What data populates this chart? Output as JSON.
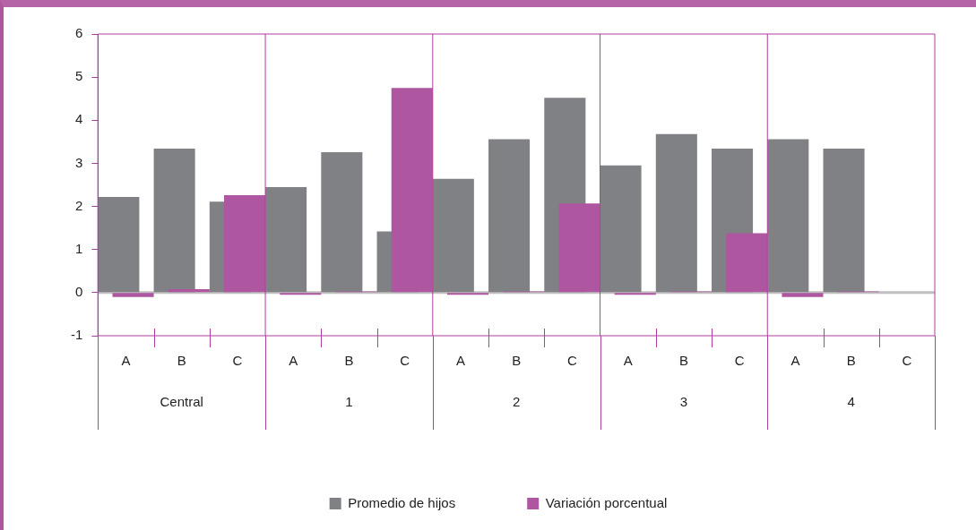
{
  "chart_data": {
    "type": "bar",
    "categories": [
      "A",
      "B",
      "C",
      "A",
      "B",
      "C",
      "A",
      "B",
      "C",
      "A",
      "B",
      "C",
      "A",
      "B",
      "C"
    ],
    "series": [
      {
        "name": "Promedio de hijos",
        "color": "#808184",
        "values": [
          2.22,
          3.34,
          2.11,
          2.45,
          3.26,
          1.42,
          2.64,
          3.56,
          4.52,
          2.95,
          3.68,
          3.34,
          3.56,
          3.34,
          0
        ]
      },
      {
        "name": "Variación porcentual",
        "color": "#ae56a0",
        "values": [
          -0.1,
          0.08,
          2.26,
          -0.05,
          0.03,
          4.75,
          -0.05,
          0.03,
          2.07,
          -0.05,
          0.03,
          1.38,
          -0.1,
          0.03,
          0
        ]
      }
    ],
    "ylim": [
      -1,
      6
    ],
    "yticks": [
      -1,
      0,
      1,
      2,
      3,
      4,
      5,
      6
    ],
    "legend": "bottom",
    "annotations": [
      "Central",
      "1",
      "2",
      "3",
      "4"
    ]
  }
}
